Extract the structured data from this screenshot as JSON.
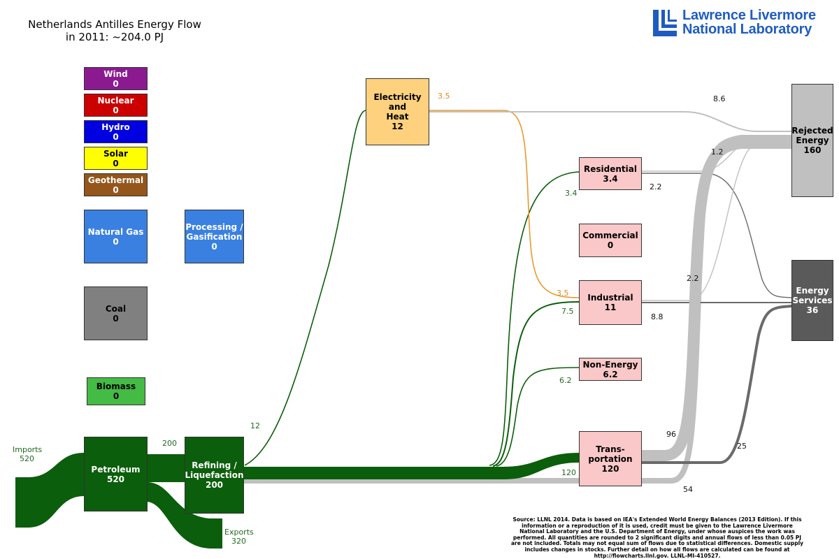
{
  "title": {
    "line1": "Netherlands Antilles Energy Flow",
    "line2": "in 2011: ~204.0 PJ"
  },
  "logo": {
    "line1": "Lawrence Livermore",
    "line2": "National Laboratory"
  },
  "nodes": {
    "wind": {
      "label": "Wind",
      "value": "0",
      "color": "#8b1a91"
    },
    "nuclear": {
      "label": "Nuclear",
      "value": "0",
      "color": "#cc0000"
    },
    "hydro": {
      "label": "Hydro",
      "value": "0",
      "color": "#0000e0"
    },
    "solar": {
      "label": "Solar",
      "value": "0",
      "color": "#ffff00"
    },
    "geothermal": {
      "label": "Geothermal",
      "value": "0",
      "color": "#94561a"
    },
    "natural_gas": {
      "label": "Natural Gas",
      "value": "0",
      "color": "#3a80e0"
    },
    "processing": {
      "label1": "Processing /",
      "label2": "Gasification",
      "value": "0",
      "color": "#3a80e0"
    },
    "coal": {
      "label": "Coal",
      "value": "0",
      "color": "#808080"
    },
    "biomass": {
      "label": "Biomass",
      "value": "0",
      "color": "#44bb44"
    },
    "petroleum": {
      "label": "Petroleum",
      "value": "520",
      "color": "#0b5e0b"
    },
    "refining": {
      "label1": "Refining /",
      "label2": "Liquefaction",
      "value": "200",
      "color": "#0b5e0b"
    },
    "electricity": {
      "label1": "Electricity",
      "label2": "and",
      "label3": "Heat",
      "value": "12",
      "color": "#fdd17d"
    },
    "residential": {
      "label": "Residential",
      "value": "3.4",
      "color": "#fac8c8"
    },
    "commercial": {
      "label": "Commercial",
      "value": "0",
      "color": "#fac8c8"
    },
    "industrial": {
      "label": "Industrial",
      "value": "11",
      "color": "#fac8c8"
    },
    "non_energy": {
      "label": "Non-Energy",
      "value": "6.2",
      "color": "#fac8c8"
    },
    "transportation": {
      "label1": "Trans-",
      "label2": "portation",
      "value": "120",
      "color": "#fac8c8"
    },
    "rejected": {
      "label1": "Rejected",
      "label2": "Energy",
      "value": "160",
      "color": "#c0c0c0"
    },
    "services": {
      "label1": "Energy",
      "label2": "Services",
      "value": "36",
      "color": "#5a5a5a"
    }
  },
  "flows": {
    "imports_label": "Imports",
    "imports_value": "520",
    "exports_label": "Exports",
    "exports_value": "320",
    "petroleum_to_refining": "200",
    "refining_to_electricity": "12",
    "electricity_to_industrial_top": "3.5",
    "electricity_to_industrial": "3.5",
    "electricity_to_rejected": "8.6",
    "refining_to_residential": "3.4",
    "refining_to_industrial": "7.5",
    "refining_to_non_energy": "6.2",
    "refining_to_transportation": "120",
    "residential_to_rejected": "1.2",
    "residential_to_services": "2.2",
    "industrial_to_rejected": "2.2",
    "industrial_to_services": "8.8",
    "transportation_to_rejected": "96",
    "transportation_to_services": "25",
    "transport_rejected_lower": "54"
  },
  "colors": {
    "petroleum_flow": "#0b5e0b",
    "electricity_flow": "#e89a2e",
    "rejected_flow": "#c0c0c0",
    "services_flow": "#6a6a6a",
    "logo_blue": "#1f5cc1"
  },
  "source_text": "Source: LLNL 2014. Data is based on IEA's Extended World Energy Balances (2013 Edition). If this information or a reproduction of it is used, credit must be given to the Lawrence Livermore National Laboratory and the U.S. Department of Energy, under whose auspices the work was performed. All quantities are rounded to 2 significant digits and annual flows of less than 0.05 PJ are not included. Totals may not equal sum of flows due to statistical differences. Domestic supply includes changes in stocks. Further detail on how all flows are calculated can be found at http://flowcharts.llnl.gov. LLNL-MI-410527."
}
